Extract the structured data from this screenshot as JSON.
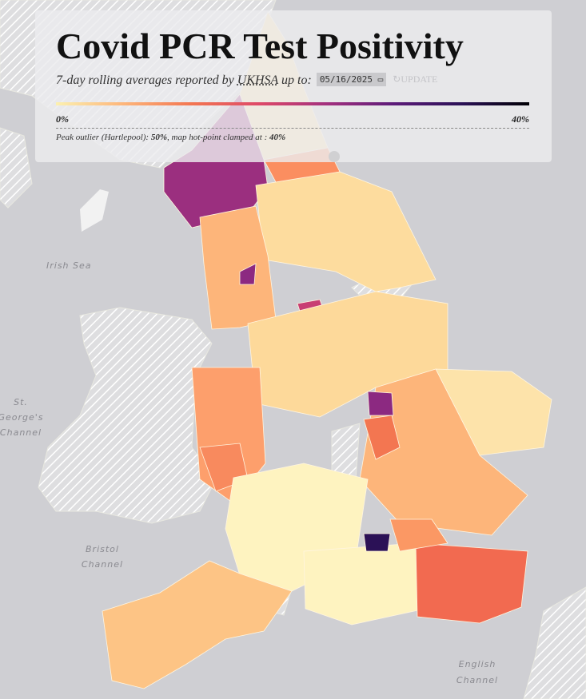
{
  "header": {
    "title": "Covid PCR Test Positivity",
    "subtitle": {
      "prefix": "7-day rolling averages reported by ",
      "source": "UKHSA",
      "suffix": " up to:"
    },
    "date": "05/16/2025",
    "button": "UPDATE"
  },
  "legend": {
    "min_label": "0%",
    "max_label": "40%"
  },
  "note": {
    "prefix": "Peak outlier (Hartlepool): ",
    "peak": "50%",
    "middle": ", map hot-point clamped at : ",
    "clamp": "40%"
  },
  "map_labels": {
    "irish_sea": "Irish Sea",
    "st_georges_1": "St.",
    "st_georges_2": "George's",
    "st_georges_3": "Channel",
    "bristol_1": "Bristol",
    "bristol_2": "Channel",
    "english_1": "English",
    "english_2": "Channel"
  }
}
